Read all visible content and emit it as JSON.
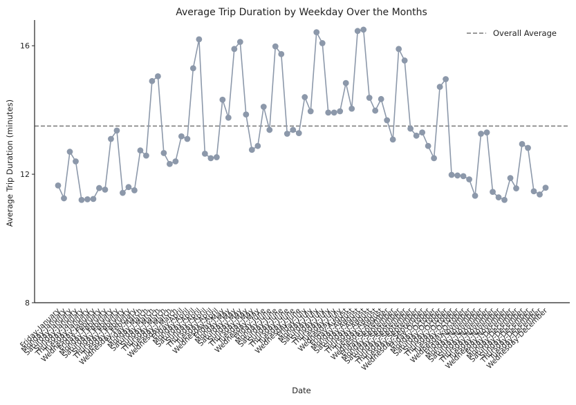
{
  "chart_data": {
    "type": "line",
    "title": "Average Trip Duration by Weekday Over the Months",
    "xlabel": "Date",
    "ylabel": "Average Trip Duration (minutes)",
    "ylim": [
      8,
      16.8
    ],
    "yticks": [
      8,
      12,
      16
    ],
    "grid": false,
    "legend_position": "top-right",
    "colors": {
      "series": "#8c98aa",
      "average": "#777777",
      "axis": "#222222"
    },
    "categories": [
      "Friday-January",
      "Monday-January",
      "Saturday-January",
      "Sunday-January",
      "Thursday-January",
      "Tuesday-January",
      "Wednesday-January",
      "Friday-February",
      "Monday-February",
      "Saturday-February",
      "Sunday-February",
      "Thursday-February",
      "Tuesday-February",
      "Wednesday-February",
      "Friday-March",
      "Monday-March",
      "Saturday-March",
      "Sunday-March",
      "Thursday-March",
      "Tuesday-March",
      "Wednesday-March",
      "Friday-April",
      "Monday-April",
      "Saturday-April",
      "Sunday-April",
      "Thursday-April",
      "Tuesday-April",
      "Wednesday-April",
      "Friday-May",
      "Monday-May",
      "Saturday-May",
      "Sunday-May",
      "Thursday-May",
      "Tuesday-May",
      "Wednesday-May",
      "Friday-June",
      "Monday-June",
      "Saturday-June",
      "Sunday-June",
      "Thursday-June",
      "Tuesday-June",
      "Wednesday-June",
      "Friday-July",
      "Monday-July",
      "Saturday-July",
      "Sunday-July",
      "Thursday-July",
      "Tuesday-July",
      "Wednesday-July",
      "Friday-August",
      "Monday-August",
      "Saturday-August",
      "Sunday-August",
      "Thursday-August",
      "Tuesday-August",
      "Wednesday-August",
      "Friday-September",
      "Monday-September",
      "Saturday-September",
      "Sunday-September",
      "Thursday-September",
      "Tuesday-September",
      "Wednesday-September",
      "Friday-October",
      "Monday-October",
      "Saturday-October",
      "Sunday-October",
      "Thursday-October",
      "Tuesday-October",
      "Wednesday-October",
      "Friday-November",
      "Monday-November",
      "Saturday-November",
      "Sunday-November",
      "Thursday-November",
      "Tuesday-November",
      "Wednesday-November",
      "Friday-December",
      "Monday-December",
      "Saturday-December",
      "Sunday-December",
      "Thursday-December",
      "Tuesday-December",
      "Wednesday-December"
    ],
    "series": [
      {
        "values": [
          11.65,
          11.25,
          12.7,
          12.4,
          11.2,
          11.22,
          11.23,
          11.57,
          11.52,
          13.1,
          13.36,
          11.42,
          11.6,
          11.5,
          12.74,
          12.58,
          14.9,
          15.05,
          12.66,
          12.32,
          12.4,
          13.18,
          13.1,
          15.3,
          16.2,
          12.64,
          12.5,
          12.53,
          14.32,
          13.76,
          15.9,
          16.12,
          13.86,
          12.76,
          12.88,
          14.1,
          13.38,
          15.98,
          15.74,
          13.26,
          13.38,
          13.28,
          14.4,
          13.96,
          16.42,
          16.08,
          13.92,
          13.92,
          13.96,
          14.84,
          14.04,
          16.46,
          16.5,
          14.38,
          13.98,
          14.34,
          13.68,
          13.08,
          15.9,
          15.54,
          13.42,
          13.2,
          13.3,
          12.88,
          12.5,
          14.72,
          14.96,
          11.98,
          11.96,
          11.94,
          11.84,
          11.33,
          13.26,
          13.3,
          11.45,
          11.28,
          11.2,
          11.88,
          11.56,
          12.94,
          12.82,
          11.47,
          11.37,
          11.58
        ]
      }
    ],
    "reference_lines": [
      {
        "name": "Overall Average",
        "value": 13.5
      }
    ]
  }
}
